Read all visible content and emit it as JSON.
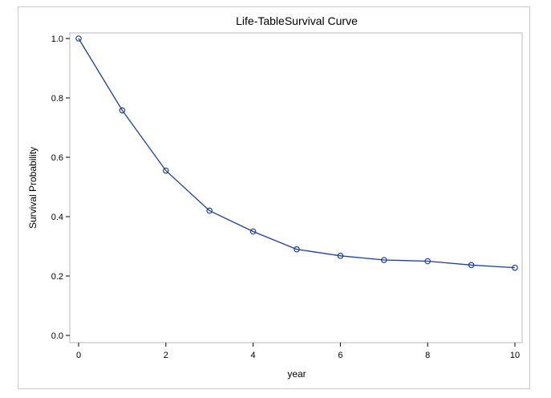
{
  "chart_data": {
    "type": "line",
    "title": "Life-TableSurvival Curve",
    "xlabel": "year",
    "ylabel": "Survival Probability",
    "xlim": [
      0,
      10
    ],
    "ylim": [
      0,
      1
    ],
    "x_ticks": [
      "0",
      "2",
      "4",
      "6",
      "8",
      "10"
    ],
    "y_ticks": [
      "0.0",
      "0.2",
      "0.4",
      "0.6",
      "0.8",
      "1.0"
    ],
    "grid": false,
    "legend": "none",
    "line_color": "#1f3f9a",
    "marker": "open-circle",
    "series": [
      {
        "x": [
          0,
          1,
          2,
          3,
          4,
          5,
          6,
          7,
          8,
          9,
          10
        ],
        "y": [
          1.0,
          0.758,
          0.555,
          0.42,
          0.35,
          0.29,
          0.268,
          0.254,
          0.25,
          0.237,
          0.228
        ]
      }
    ]
  }
}
